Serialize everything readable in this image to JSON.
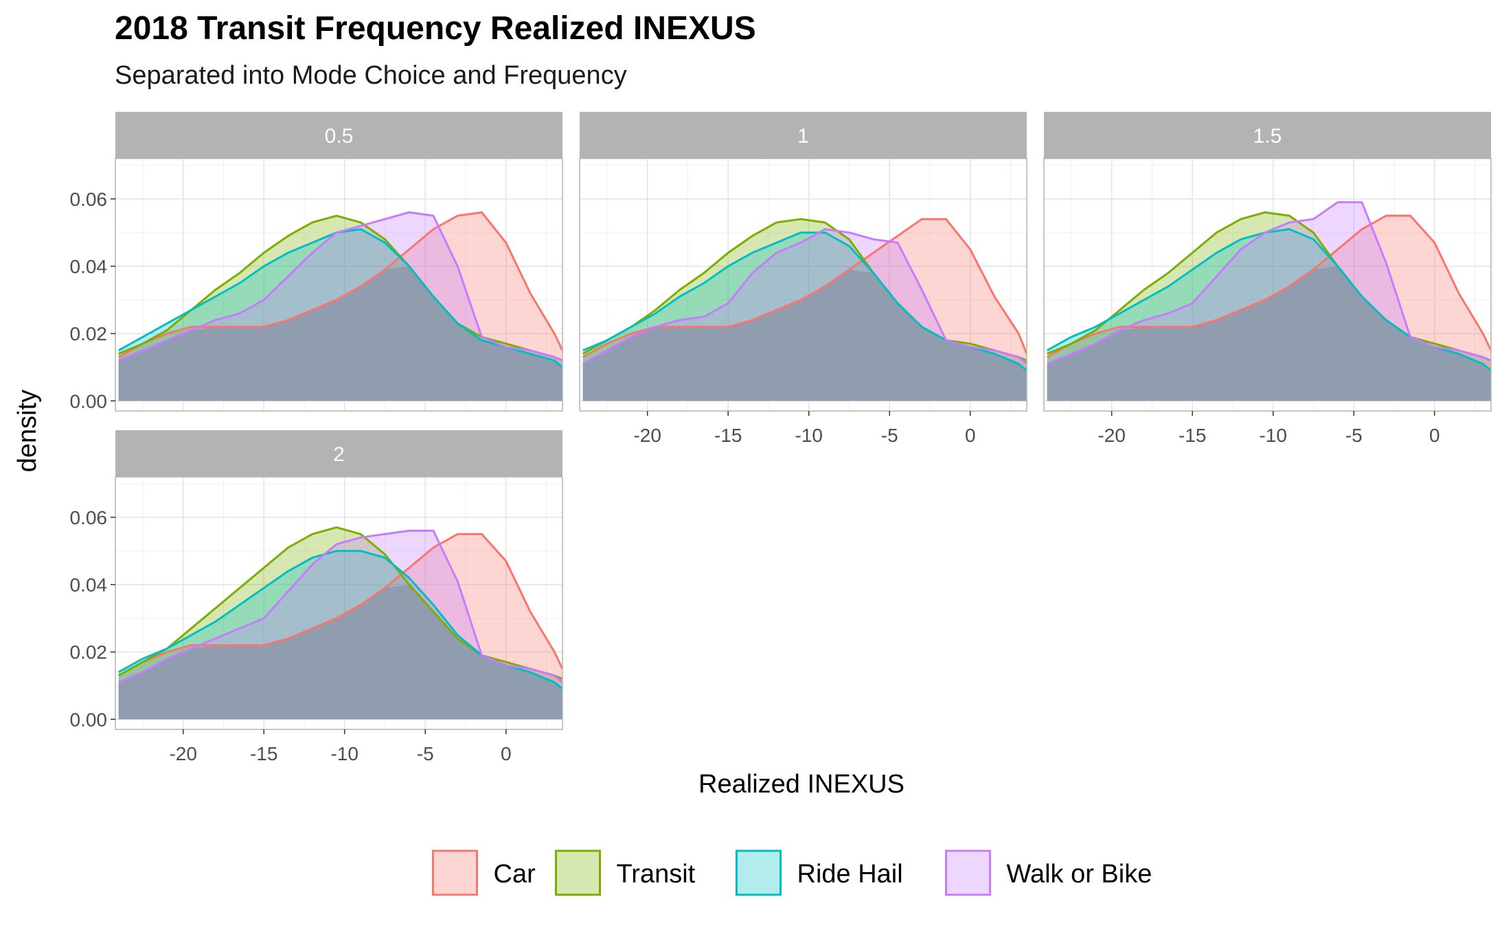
{
  "chart_data": {
    "type": "area",
    "title": "2018 Transit Frequency Realized INEXUS",
    "subtitle": "Separated into Mode Choice and Frequency",
    "xlabel": "Realized INEXUS",
    "ylabel": "density",
    "xlim": [
      -24.2,
      3.5
    ],
    "ylim": [
      -0.003,
      0.072
    ],
    "x_ticks": [
      -20,
      -15,
      -10,
      -5,
      0
    ],
    "y_ticks": [
      0.0,
      0.02,
      0.04,
      0.06
    ],
    "x_tick_labels": [
      "-20",
      "-15",
      "-10",
      "-5",
      "0"
    ],
    "y_tick_labels": [
      "0.00",
      "0.02",
      "0.04",
      "0.06"
    ],
    "grid": true,
    "legend_position": "bottom",
    "colors": {
      "Car": "#F8766D",
      "Transit": "#7CAE00",
      "Ride Hail": "#00BFC4",
      "Walk or Bike": "#C77CFF"
    },
    "x": [
      -24,
      -22.5,
      -21,
      -19.5,
      -18,
      -16.5,
      -15,
      -13.5,
      -12,
      -10.5,
      -9,
      -7.5,
      -6,
      -4.5,
      -3,
      -1.5,
      0,
      1.5,
      3,
      3.5
    ],
    "panels": [
      {
        "label": "0.5",
        "series": [
          {
            "name": "Car",
            "values": [
              0.013,
              0.017,
              0.02,
              0.022,
              0.022,
              0.022,
              0.022,
              0.024,
              0.027,
              0.03,
              0.034,
              0.039,
              0.045,
              0.051,
              0.055,
              0.056,
              0.047,
              0.032,
              0.02,
              0.015
            ]
          },
          {
            "name": "Transit",
            "values": [
              0.014,
              0.017,
              0.021,
              0.027,
              0.033,
              0.038,
              0.044,
              0.049,
              0.053,
              0.055,
              0.053,
              0.048,
              0.04,
              0.031,
              0.023,
              0.019,
              0.017,
              0.015,
              0.013,
              0.012
            ]
          },
          {
            "name": "Ride Hail",
            "values": [
              0.015,
              0.019,
              0.023,
              0.027,
              0.031,
              0.035,
              0.04,
              0.044,
              0.047,
              0.05,
              0.051,
              0.047,
              0.04,
              0.031,
              0.023,
              0.018,
              0.016,
              0.014,
              0.012,
              0.01
            ]
          },
          {
            "name": "Walk or Bike",
            "values": [
              0.012,
              0.015,
              0.018,
              0.021,
              0.024,
              0.026,
              0.03,
              0.037,
              0.044,
              0.05,
              0.052,
              0.054,
              0.056,
              0.055,
              0.04,
              0.019,
              0.016,
              0.015,
              0.013,
              0.012
            ]
          }
        ]
      },
      {
        "label": "1",
        "series": [
          {
            "name": "Car",
            "values": [
              0.013,
              0.017,
              0.02,
              0.022,
              0.022,
              0.022,
              0.022,
              0.024,
              0.027,
              0.03,
              0.034,
              0.039,
              0.044,
              0.049,
              0.054,
              0.054,
              0.045,
              0.031,
              0.02,
              0.014
            ]
          },
          {
            "name": "Transit",
            "values": [
              0.014,
              0.018,
              0.022,
              0.027,
              0.033,
              0.038,
              0.044,
              0.049,
              0.053,
              0.054,
              0.053,
              0.048,
              0.038,
              0.029,
              0.022,
              0.018,
              0.017,
              0.015,
              0.013,
              0.012
            ]
          },
          {
            "name": "Ride Hail",
            "values": [
              0.015,
              0.018,
              0.022,
              0.026,
              0.031,
              0.035,
              0.04,
              0.044,
              0.047,
              0.05,
              0.05,
              0.046,
              0.038,
              0.029,
              0.022,
              0.018,
              0.016,
              0.014,
              0.011,
              0.009
            ]
          },
          {
            "name": "Walk or Bike",
            "values": [
              0.011,
              0.015,
              0.019,
              0.022,
              0.024,
              0.025,
              0.029,
              0.038,
              0.044,
              0.047,
              0.051,
              0.05,
              0.048,
              0.047,
              0.033,
              0.018,
              0.016,
              0.015,
              0.013,
              0.011
            ]
          }
        ]
      },
      {
        "label": "1.5",
        "series": [
          {
            "name": "Car",
            "values": [
              0.013,
              0.017,
              0.02,
              0.022,
              0.022,
              0.022,
              0.022,
              0.024,
              0.027,
              0.03,
              0.034,
              0.039,
              0.045,
              0.051,
              0.055,
              0.055,
              0.047,
              0.032,
              0.02,
              0.015
            ]
          },
          {
            "name": "Transit",
            "values": [
              0.014,
              0.017,
              0.021,
              0.027,
              0.033,
              0.038,
              0.044,
              0.05,
              0.054,
              0.056,
              0.055,
              0.05,
              0.04,
              0.031,
              0.024,
              0.019,
              0.017,
              0.015,
              0.013,
              0.012
            ]
          },
          {
            "name": "Ride Hail",
            "values": [
              0.015,
              0.019,
              0.022,
              0.026,
              0.03,
              0.034,
              0.039,
              0.044,
              0.048,
              0.05,
              0.051,
              0.048,
              0.04,
              0.031,
              0.024,
              0.019,
              0.016,
              0.014,
              0.011,
              0.009
            ]
          },
          {
            "name": "Walk or Bike",
            "values": [
              0.011,
              0.014,
              0.017,
              0.021,
              0.024,
              0.026,
              0.029,
              0.037,
              0.045,
              0.05,
              0.053,
              0.054,
              0.059,
              0.059,
              0.041,
              0.019,
              0.016,
              0.015,
              0.013,
              0.012
            ]
          }
        ]
      },
      {
        "label": "2",
        "series": [
          {
            "name": "Car",
            "values": [
              0.013,
              0.017,
              0.02,
              0.022,
              0.022,
              0.022,
              0.022,
              0.024,
              0.027,
              0.03,
              0.034,
              0.039,
              0.045,
              0.051,
              0.055,
              0.055,
              0.047,
              0.032,
              0.02,
              0.015
            ]
          },
          {
            "name": "Transit",
            "values": [
              0.013,
              0.017,
              0.021,
              0.027,
              0.033,
              0.039,
              0.045,
              0.051,
              0.055,
              0.057,
              0.055,
              0.049,
              0.04,
              0.032,
              0.024,
              0.019,
              0.017,
              0.015,
              0.013,
              0.012
            ]
          },
          {
            "name": "Ride Hail",
            "values": [
              0.014,
              0.018,
              0.021,
              0.025,
              0.029,
              0.034,
              0.039,
              0.044,
              0.048,
              0.05,
              0.05,
              0.048,
              0.042,
              0.034,
              0.025,
              0.019,
              0.016,
              0.014,
              0.011,
              0.009
            ]
          },
          {
            "name": "Walk or Bike",
            "values": [
              0.011,
              0.014,
              0.018,
              0.021,
              0.024,
              0.027,
              0.03,
              0.038,
              0.046,
              0.052,
              0.054,
              0.055,
              0.056,
              0.056,
              0.041,
              0.019,
              0.016,
              0.015,
              0.013,
              0.011
            ]
          }
        ]
      }
    ],
    "legend": [
      "Car",
      "Transit",
      "Ride Hail",
      "Walk or Bike"
    ]
  }
}
